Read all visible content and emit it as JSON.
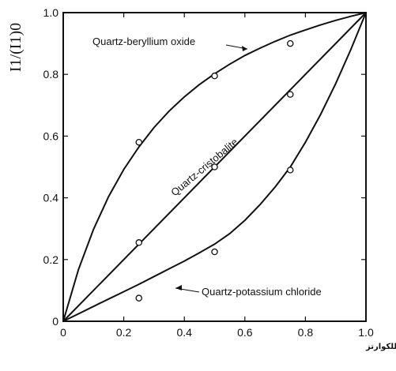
{
  "chart_data": {
    "type": "line",
    "title": "",
    "ylabel": "I1/(I1)0",
    "xlabel": "النسبة الوزنية للكوارتز",
    "xlim": [
      0,
      1.0
    ],
    "ylim": [
      0,
      1.0
    ],
    "xticks": [
      "0",
      "0.2",
      "0.4",
      "0.6",
      "0.8",
      "1.0"
    ],
    "yticks": [
      "0",
      "0.2",
      "0.4",
      "0.6",
      "0.8",
      "1.0"
    ],
    "grid": false,
    "series": [
      {
        "name": "Quartz-beryllium oxide",
        "curve_x": [
          0,
          0.05,
          0.1,
          0.15,
          0.2,
          0.25,
          0.3,
          0.35,
          0.4,
          0.45,
          0.5,
          0.55,
          0.6,
          0.65,
          0.7,
          0.75,
          0.8,
          0.85,
          0.9,
          0.95,
          1.0
        ],
        "curve_y": [
          0,
          0.167,
          0.298,
          0.404,
          0.492,
          0.565,
          0.628,
          0.681,
          0.727,
          0.767,
          0.802,
          0.833,
          0.861,
          0.885,
          0.907,
          0.927,
          0.944,
          0.96,
          0.975,
          0.988,
          1.0
        ],
        "points_x": [
          0.25,
          0.5,
          0.75
        ],
        "points_y": [
          0.58,
          0.795,
          0.9
        ]
      },
      {
        "name": "Quartz-cristobalite",
        "curve_x": [
          0,
          1.0
        ],
        "curve_y": [
          0,
          1.0
        ],
        "points_x": [
          0.25,
          0.5,
          0.75
        ],
        "points_y": [
          0.255,
          0.5,
          0.735
        ]
      },
      {
        "name": "Quartz-potassium chloride",
        "curve_x": [
          0,
          0.05,
          0.1,
          0.15,
          0.2,
          0.25,
          0.3,
          0.35,
          0.4,
          0.45,
          0.5,
          0.55,
          0.6,
          0.65,
          0.7,
          0.75,
          0.8,
          0.85,
          0.9,
          0.95,
          1.0
        ],
        "curve_y": [
          0,
          0.024,
          0.048,
          0.072,
          0.096,
          0.12,
          0.145,
          0.17,
          0.195,
          0.222,
          0.25,
          0.284,
          0.327,
          0.378,
          0.435,
          0.5,
          0.58,
          0.67,
          0.77,
          0.88,
          1.0
        ],
        "points_x": [
          0.25,
          0.5,
          0.75
        ],
        "points_y": [
          0.075,
          0.225,
          0.49
        ]
      }
    ]
  }
}
